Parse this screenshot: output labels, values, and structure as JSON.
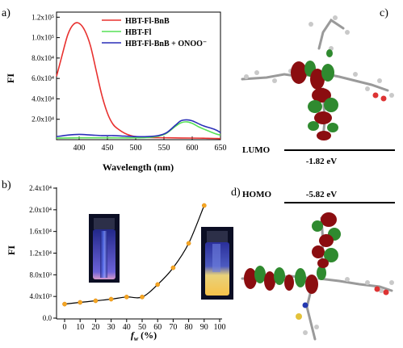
{
  "panels": {
    "a": "a)",
    "b": "b)",
    "c": "c)",
    "d": "d)"
  },
  "colors": {
    "red": "#e8312f",
    "green": "#57e157",
    "blue": "#2a2fb8",
    "black": "#000000",
    "orbital_red": "#8b0d10",
    "orbital_green": "#2f8a2f"
  },
  "chart_data": [
    {
      "type": "line",
      "xlabel": "Wavelength (nm)",
      "ylabel": "FI",
      "xlim": [
        360,
        650
      ],
      "ylim": [
        0,
        125000
      ],
      "xticks": [
        "400",
        "450",
        "500",
        "550",
        "600",
        "650"
      ],
      "yticks": [
        "2.0x10⁴",
        "4.0x10⁴",
        "6.0x10⁴",
        "8.0x10⁴",
        "1.0x10⁵",
        "1.2x10⁵"
      ],
      "legend_position": "top-right",
      "series": [
        {
          "name": "HBT-Fl-BnB",
          "color": "#e8312f",
          "x": [
            360,
            370,
            380,
            390,
            400,
            410,
            420,
            430,
            440,
            450,
            460,
            470,
            480,
            490,
            500,
            520,
            540,
            560,
            580,
            600,
            620,
            640,
            650
          ],
          "values": [
            62000,
            83000,
            103000,
            113000,
            114000,
            107000,
            92000,
            68000,
            44000,
            26000,
            15000,
            10000,
            6500,
            4200,
            3000,
            2200,
            2000,
            1800,
            1700,
            1600,
            1400,
            1200,
            1000
          ]
        },
        {
          "name": "HBT-Fl",
          "color": "#57e157",
          "x": [
            360,
            400,
            450,
            500,
            530,
            550,
            560,
            570,
            580,
            590,
            600,
            610,
            620,
            640,
            650
          ],
          "values": [
            1500,
            1800,
            1800,
            1800,
            2500,
            5000,
            8500,
            13000,
            16500,
            17500,
            16000,
            13000,
            10500,
            6000,
            4500
          ]
        },
        {
          "name": "HBT-Fl-BnB + ONOO⁻",
          "color": "#2a2fb8",
          "x": [
            360,
            380,
            400,
            420,
            440,
            460,
            480,
            500,
            520,
            540,
            555,
            570,
            580,
            590,
            600,
            610,
            620,
            640,
            650
          ],
          "values": [
            3000,
            4500,
            5200,
            4600,
            4000,
            4000,
            3500,
            3000,
            3000,
            4000,
            7000,
            14000,
            18500,
            19500,
            18500,
            16000,
            13500,
            10000,
            7000
          ]
        }
      ]
    },
    {
      "type": "line",
      "xlabel": "f_w (%)",
      "ylabel": "FI",
      "xlim": [
        0,
        100
      ],
      "ylim": [
        0,
        24000
      ],
      "xticks": [
        "0",
        "10",
        "20",
        "30",
        "40",
        "50",
        "60",
        "70",
        "80",
        "90",
        "100"
      ],
      "yticks": [
        "0.0",
        "4.0x10³",
        "8.0x10³",
        "1.2x10⁴",
        "1.6x10⁴",
        "2.0x10⁴",
        "2.4x10⁴"
      ],
      "grid": false,
      "series": [
        {
          "x": [
            0,
            10,
            20,
            30,
            40,
            50,
            60,
            70,
            80,
            90
          ],
          "values": [
            2600,
            2900,
            3200,
            3500,
            3900,
            3900,
            6200,
            9300,
            13800,
            20800
          ]
        }
      ]
    }
  ],
  "orbitals": {
    "lumo": {
      "label": "LUMO",
      "energy": "-1.82 eV"
    },
    "homo": {
      "label": "HOMO",
      "energy": "-5.82 eV"
    }
  }
}
